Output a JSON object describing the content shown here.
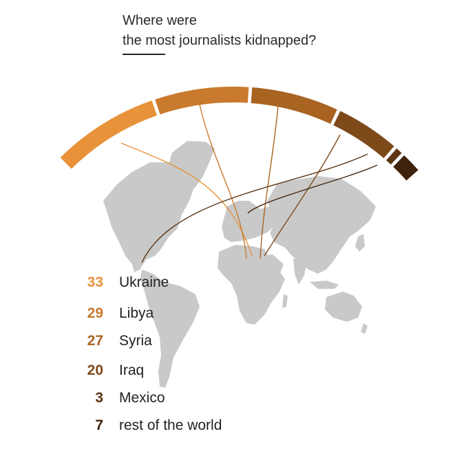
{
  "title": {
    "line1": "Where were",
    "line2": "the most journalists kidnapped?"
  },
  "chart_data": {
    "type": "pie",
    "subtype": "arc-donut-with-map-lines",
    "categories": [
      "Ukraine",
      "Libya",
      "Syria",
      "Iraq",
      "Mexico",
      "rest of the world"
    ],
    "values": [
      33,
      29,
      27,
      20,
      3,
      7
    ],
    "colors": [
      "#E8923A",
      "#C97A2E",
      "#A96422",
      "#7E4A1A",
      "#5C3512",
      "#3F220C"
    ],
    "title": "Where were the most journalists kidnapped?",
    "legend": [
      {
        "value": "33",
        "label": "Ukraine"
      },
      {
        "value": "29",
        "label": "Libya"
      },
      {
        "value": "27",
        "label": "Syria"
      },
      {
        "value": "20",
        "label": "Iraq"
      },
      {
        "value": "3",
        "label": "Mexico"
      },
      {
        "value": "7",
        "label": "rest of the world"
      }
    ],
    "background": "world-map-icon",
    "map_color": "#c4c4c4"
  }
}
